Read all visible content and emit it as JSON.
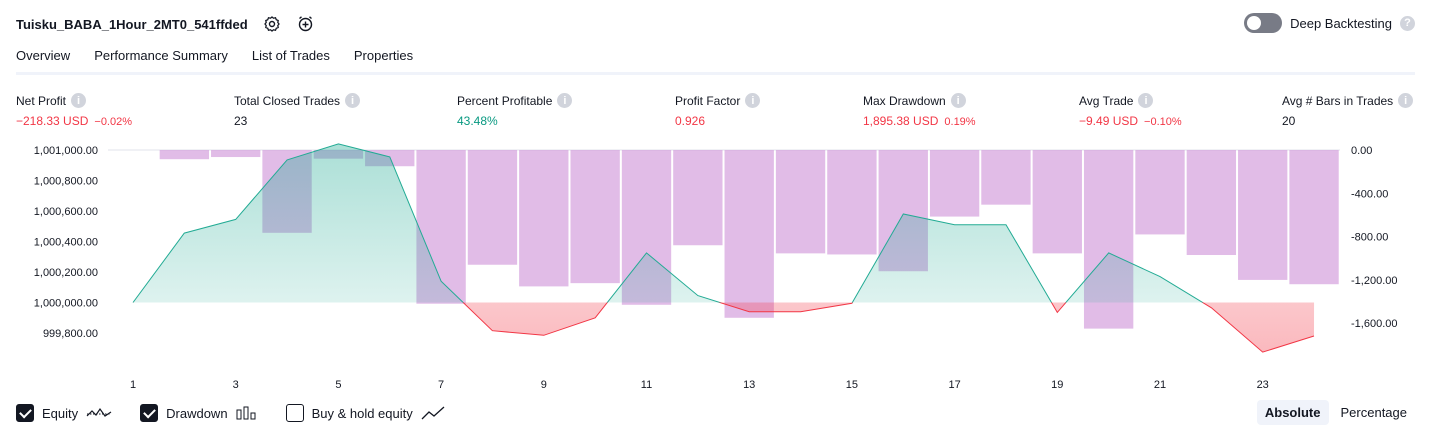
{
  "header": {
    "title": "Tuisku_BABA_1Hour_2MT0_541ffded",
    "deep_backtesting_label": "Deep Backtesting",
    "help_glyph": "?"
  },
  "tabs": [
    {
      "label": "Overview",
      "active": true
    },
    {
      "label": "Performance Summary",
      "active": false
    },
    {
      "label": "List of Trades",
      "active": false
    },
    {
      "label": "Properties",
      "active": false
    }
  ],
  "metrics": [
    {
      "label": "Net Profit",
      "value": "−218.33 USD",
      "pct": "−0.02%",
      "tone": "neg"
    },
    {
      "label": "Total Closed Trades",
      "value": "23",
      "pct": "",
      "tone": "neu"
    },
    {
      "label": "Percent Profitable",
      "value": "43.48%",
      "pct": "",
      "tone": "pos"
    },
    {
      "label": "Profit Factor",
      "value": "0.926",
      "pct": "",
      "tone": "neg"
    },
    {
      "label": "Max Drawdown",
      "value": "1,895.38 USD",
      "pct": "0.19%",
      "tone": "neg"
    },
    {
      "label": "Avg Trade",
      "value": "−9.49 USD",
      "pct": "−0.10%",
      "tone": "neg"
    },
    {
      "label": "Avg # Bars in Trades",
      "value": "20",
      "pct": "",
      "tone": "neu"
    }
  ],
  "chart_data": {
    "type": "line",
    "x": [
      1,
      2,
      3,
      4,
      5,
      6,
      7,
      8,
      9,
      10,
      11,
      12,
      13,
      14,
      15,
      16,
      17,
      18,
      19,
      20,
      21,
      22,
      23,
      24
    ],
    "x_tick_labels": [
      "1",
      "3",
      "5",
      "7",
      "9",
      "11",
      "13",
      "15",
      "17",
      "19",
      "21",
      "23"
    ],
    "baseline": 1000000,
    "series": [
      {
        "name": "Equity",
        "type": "line",
        "values": [
          1000000,
          1000455,
          1000545,
          1000935,
          1001040,
          1000955,
          1000140,
          999815,
          999785,
          999900,
          1000325,
          1000045,
          999940,
          999940,
          999995,
          1000580,
          1000510,
          1000510,
          999935,
          1000325,
          1000170,
          999965,
          999675,
          999780
        ]
      },
      {
        "name": "Drawdown",
        "type": "bar",
        "values": [
          0,
          -85,
          -65,
          -765,
          -80,
          -150,
          -1420,
          -1060,
          -1260,
          -1230,
          -1430,
          -880,
          -1550,
          -955,
          -965,
          -1120,
          -615,
          -505,
          -955,
          -1650,
          -780,
          -970,
          -1200,
          -1240
        ]
      }
    ],
    "y_left": {
      "ticks": [
        "1,001,000.00",
        "1,000,800.00",
        "1,000,600.00",
        "1,000,400.00",
        "1,000,200.00",
        "1,000,000.00",
        "999,800.00"
      ],
      "range": [
        999700,
        1001000
      ]
    },
    "y_right": {
      "ticks": [
        "0.00",
        "-400.00",
        "-800.00",
        "-1,200.00",
        "-1,600.00"
      ],
      "range": [
        -1650,
        0
      ]
    },
    "colors": {
      "equity_line": "#22ab94",
      "equity_below": "#f23645",
      "drawdown_bar": "#ce93d8"
    }
  },
  "legend": {
    "equity_label": "Equity",
    "drawdown_label": "Drawdown",
    "buyhold_label": "Buy & hold equity"
  },
  "scale": {
    "absolute": "Absolute",
    "percentage": "Percentage"
  }
}
